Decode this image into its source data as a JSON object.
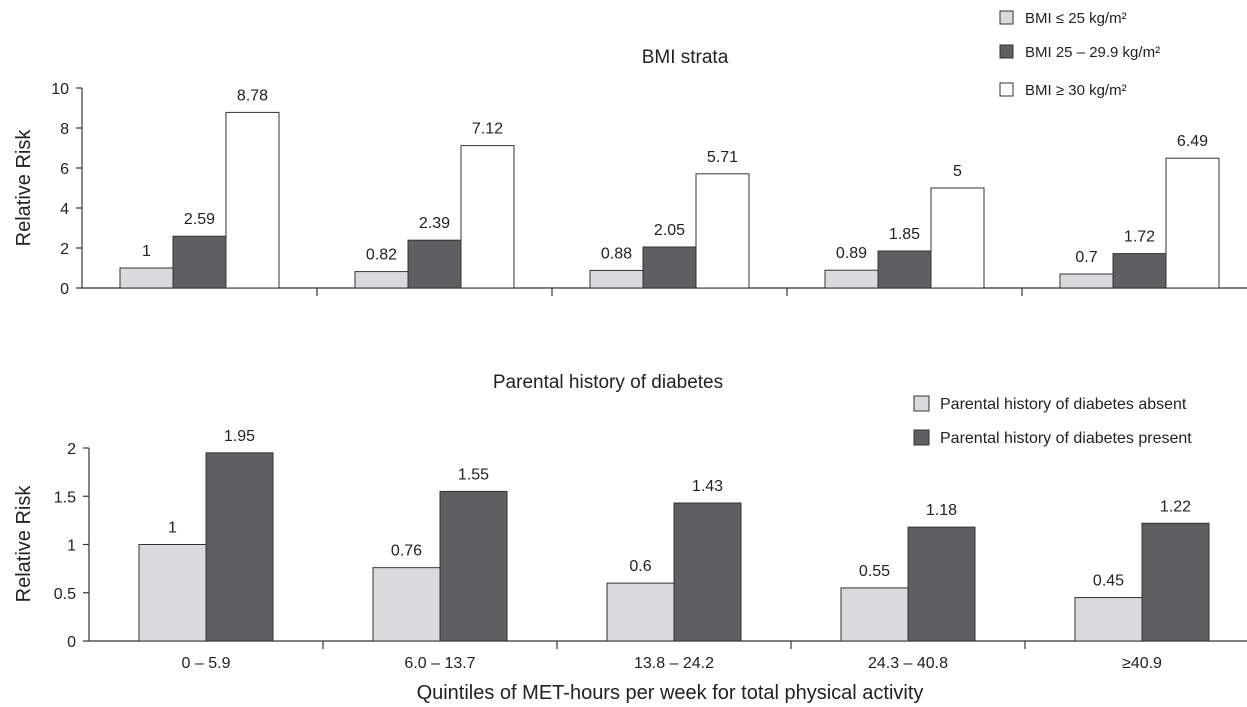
{
  "chart_data": [
    {
      "type": "bar",
      "title": "BMI strata",
      "ylabel": "Relative Risk",
      "ylim": [
        0,
        10
      ],
      "yticks": [
        0,
        2,
        4,
        6,
        8,
        10
      ],
      "categories": [
        "0 – 5.9",
        "6.0 – 13.7",
        "13.8 – 24.2",
        "24.3 – 40.8",
        "≥40.9"
      ],
      "series": [
        {
          "name": "BMI ≤ 25 kg/m²",
          "color": "#d9dadc",
          "values": [
            1,
            0.82,
            0.88,
            0.89,
            0.7
          ],
          "labels": [
            "1",
            "0.82",
            "0.88",
            "0.89",
            "0.7"
          ]
        },
        {
          "name": "BMI 25 – 29.9 kg/m²",
          "color": "#5f5f61",
          "values": [
            2.59,
            2.39,
            2.05,
            1.85,
            1.72
          ],
          "labels": [
            "2.59",
            "2.39",
            "2.05",
            "1.85",
            "1.72"
          ]
        },
        {
          "name": "BMI ≥ 30 kg/m²",
          "color": "#ffffff",
          "values": [
            8.78,
            7.12,
            5.71,
            5,
            6.49
          ],
          "labels": [
            "8.78",
            "7.12",
            "5.71",
            "5",
            "6.49"
          ]
        }
      ],
      "legend_position": "top-right",
      "grid": false
    },
    {
      "type": "bar",
      "title": "Parental history of diabetes",
      "ylabel": "Relative Risk",
      "ylim": [
        0,
        2
      ],
      "yticks": [
        0,
        0.5,
        1,
        1.5,
        2
      ],
      "yticklabels": [
        "0",
        "0.5",
        "1",
        "1.5",
        "2"
      ],
      "categories": [
        "0 – 5.9",
        "6.0 – 13.7",
        "13.8 – 24.2",
        "24.3 – 40.8",
        "≥40.9"
      ],
      "series": [
        {
          "name": "Parental history of diabetes absent",
          "color": "#d9dadc",
          "values": [
            1,
            0.76,
            0.6,
            0.55,
            0.45
          ],
          "labels": [
            "1",
            "0.76",
            "0.6",
            "0.55",
            "0.45"
          ]
        },
        {
          "name": "Parental history of diabetes present",
          "color": "#5f5f61",
          "values": [
            1.95,
            1.55,
            1.43,
            1.18,
            1.22
          ],
          "labels": [
            "1.95",
            "1.55",
            "1.43",
            "1.18",
            "1.22"
          ]
        }
      ],
      "legend_position": "top-right",
      "grid": false
    }
  ],
  "xlabel": "Quintiles of MET-hours per week for total physical activity"
}
